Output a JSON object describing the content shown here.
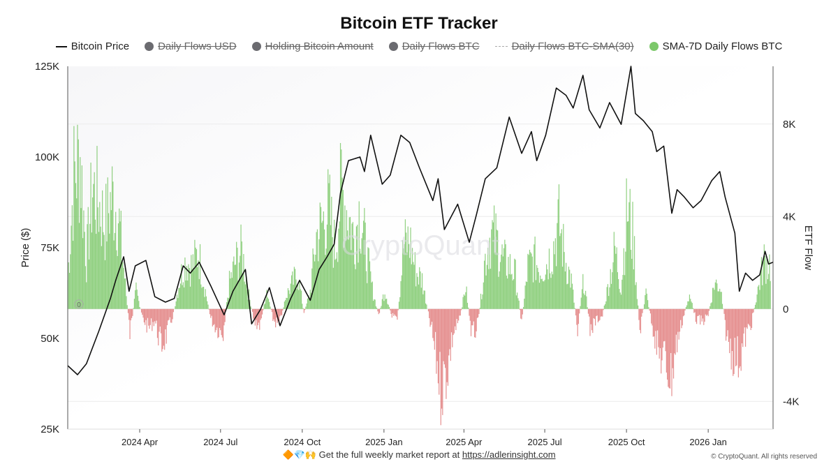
{
  "title": "Bitcoin ETF Tracker",
  "legend": [
    {
      "label": "Bitcoin Price",
      "kind": "line",
      "color": "#111111",
      "active": true
    },
    {
      "label": "Daily Flows USD",
      "kind": "dot",
      "color": "#6b6b70",
      "active": false
    },
    {
      "label": "Holding Bitcoin Amount",
      "kind": "dot",
      "color": "#6b6b70",
      "active": false
    },
    {
      "label": "Daily Flows BTC",
      "kind": "dot",
      "color": "#6b6b70",
      "active": false
    },
    {
      "label": "Daily Flows BTC-SMA(30)",
      "kind": "dash",
      "color": "#aaaaaa",
      "active": false
    },
    {
      "label": "SMA-7D Daily Flows BTC",
      "kind": "dot",
      "color": "#7cc86a",
      "active": true
    }
  ],
  "watermark": "CryptoQuant",
  "zero_marker": "0",
  "footer": {
    "emojis": "🔶💎🙌",
    "text": "Get the full weekly market report at",
    "link": "https://adlerinsight.com"
  },
  "copyright": "© CryptoQuant. All rights reserved",
  "chart_data": {
    "type": "line",
    "title": "Bitcoin ETF Tracker",
    "left_axis": {
      "label": "Price ($)",
      "ticks": [
        "125K",
        "100K",
        "75K",
        "50K",
        "25K"
      ],
      "tick_values": [
        125000,
        100000,
        75000,
        50000,
        25000
      ],
      "range": [
        25000,
        125000
      ]
    },
    "right_axis": {
      "label": "ETF Flow",
      "ticks": [
        "8K",
        "4K",
        "0",
        "-4K"
      ],
      "tick_values": [
        8000,
        4000,
        0,
        -4000
      ],
      "range": [
        -5200,
        10500
      ]
    },
    "x_axis": {
      "ticks": [
        "2024 Apr",
        "2024 Jul",
        "2024 Oct",
        "2025 Jan",
        "2025 Apr",
        "2025 Jul",
        "2025 Oct",
        "2026 Jan"
      ],
      "tick_dates": [
        "2024-04-01",
        "2024-07-01",
        "2024-10-01",
        "2025-01-01",
        "2025-04-01",
        "2025-07-01",
        "2025-10-01",
        "2026-01-01"
      ],
      "range": [
        "2024-01-11",
        "2026-03-15"
      ]
    },
    "grid": true,
    "legend_position": "top",
    "series": [
      {
        "name": "Bitcoin Price",
        "axis": "left",
        "color": "#111111",
        "points": [
          [
            "2024-01-11",
            42500
          ],
          [
            "2024-01-22",
            40000
          ],
          [
            "2024-02-01",
            43000
          ],
          [
            "2024-02-15",
            52000
          ],
          [
            "2024-02-28",
            61000
          ],
          [
            "2024-03-05",
            66000
          ],
          [
            "2024-03-14",
            72500
          ],
          [
            "2024-03-20",
            63000
          ],
          [
            "2024-03-27",
            70000
          ],
          [
            "2024-04-08",
            71500
          ],
          [
            "2024-04-18",
            61500
          ],
          [
            "2024-04-30",
            60000
          ],
          [
            "2024-05-10",
            61000
          ],
          [
            "2024-05-20",
            70000
          ],
          [
            "2024-05-28",
            68000
          ],
          [
            "2024-06-07",
            71000
          ],
          [
            "2024-06-20",
            64500
          ],
          [
            "2024-07-05",
            56500
          ],
          [
            "2024-07-15",
            63000
          ],
          [
            "2024-07-29",
            69000
          ],
          [
            "2024-08-05",
            54000
          ],
          [
            "2024-08-15",
            58000
          ],
          [
            "2024-08-25",
            64000
          ],
          [
            "2024-09-06",
            53500
          ],
          [
            "2024-09-18",
            61000
          ],
          [
            "2024-09-28",
            66000
          ],
          [
            "2024-10-10",
            60500
          ],
          [
            "2024-10-20",
            69000
          ],
          [
            "2024-10-29",
            72500
          ],
          [
            "2024-11-06",
            76000
          ],
          [
            "2024-11-13",
            90000
          ],
          [
            "2024-11-22",
            99000
          ],
          [
            "2024-12-05",
            100000
          ],
          [
            "2024-12-10",
            96000
          ],
          [
            "2024-12-17",
            106000
          ],
          [
            "2024-12-30",
            92500
          ],
          [
            "2025-01-08",
            95000
          ],
          [
            "2025-01-20",
            106000
          ],
          [
            "2025-01-30",
            104000
          ],
          [
            "2025-02-10",
            97000
          ],
          [
            "2025-02-25",
            88000
          ],
          [
            "2025-03-03",
            94000
          ],
          [
            "2025-03-10",
            80000
          ],
          [
            "2025-03-25",
            87000
          ],
          [
            "2025-04-07",
            76500
          ],
          [
            "2025-04-15",
            84000
          ],
          [
            "2025-04-25",
            94000
          ],
          [
            "2025-05-08",
            97000
          ],
          [
            "2025-05-22",
            111000
          ],
          [
            "2025-06-05",
            101000
          ],
          [
            "2025-06-16",
            107000
          ],
          [
            "2025-06-22",
            99000
          ],
          [
            "2025-07-02",
            106000
          ],
          [
            "2025-07-14",
            119000
          ],
          [
            "2025-07-25",
            117000
          ],
          [
            "2025-08-02",
            113500
          ],
          [
            "2025-08-13",
            122500
          ],
          [
            "2025-08-20",
            113000
          ],
          [
            "2025-09-01",
            108000
          ],
          [
            "2025-09-12",
            115000
          ],
          [
            "2025-09-25",
            109000
          ],
          [
            "2025-10-06",
            125000
          ],
          [
            "2025-10-11",
            112000
          ],
          [
            "2025-10-20",
            110000
          ],
          [
            "2025-10-30",
            107000
          ],
          [
            "2025-11-04",
            101500
          ],
          [
            "2025-11-12",
            103000
          ],
          [
            "2025-11-21",
            84500
          ],
          [
            "2025-11-27",
            91000
          ],
          [
            "2025-12-05",
            89000
          ],
          [
            "2025-12-15",
            86000
          ],
          [
            "2025-12-24",
            88000
          ],
          [
            "2026-01-05",
            93500
          ],
          [
            "2026-01-14",
            96000
          ],
          [
            "2026-01-20",
            89000
          ],
          [
            "2026-01-31",
            79000
          ],
          [
            "2026-02-05",
            63000
          ],
          [
            "2026-02-12",
            68000
          ],
          [
            "2026-02-20",
            66000
          ],
          [
            "2026-02-28",
            67500
          ],
          [
            "2026-03-06",
            74000
          ],
          [
            "2026-03-10",
            70500
          ],
          [
            "2026-03-15",
            71000
          ]
        ]
      },
      {
        "name": "SMA-7D Daily Flows BTC",
        "axis": "right",
        "positive_color": "#7cc86a",
        "negative_color": "#e07b7b",
        "points": [
          [
            "2024-01-11",
            1800
          ],
          [
            "2024-01-18",
            8200
          ],
          [
            "2024-01-25",
            9400
          ],
          [
            "2024-02-01",
            3000
          ],
          [
            "2024-02-08",
            7500
          ],
          [
            "2024-02-15",
            6500
          ],
          [
            "2024-02-22",
            5200
          ],
          [
            "2024-03-01",
            7000
          ],
          [
            "2024-03-08",
            5800
          ],
          [
            "2024-03-15",
            2000
          ],
          [
            "2024-03-21",
            -1500
          ],
          [
            "2024-03-28",
            1200
          ],
          [
            "2024-04-04",
            -500
          ],
          [
            "2024-04-11",
            -1200
          ],
          [
            "2024-04-18",
            -700
          ],
          [
            "2024-04-25",
            -2300
          ],
          [
            "2024-05-02",
            -1500
          ],
          [
            "2024-05-09",
            -300
          ],
          [
            "2024-05-16",
            1800
          ],
          [
            "2024-05-23",
            3000
          ],
          [
            "2024-05-30",
            2600
          ],
          [
            "2024-06-06",
            3500
          ],
          [
            "2024-06-13",
            1400
          ],
          [
            "2024-06-20",
            -600
          ],
          [
            "2024-06-27",
            -1200
          ],
          [
            "2024-07-04",
            -1400
          ],
          [
            "2024-07-11",
            1600
          ],
          [
            "2024-07-18",
            2900
          ],
          [
            "2024-07-25",
            3600
          ],
          [
            "2024-08-01",
            1100
          ],
          [
            "2024-08-08",
            -800
          ],
          [
            "2024-08-15",
            -1000
          ],
          [
            "2024-08-22",
            1200
          ],
          [
            "2024-08-29",
            -600
          ],
          [
            "2024-09-05",
            -1100
          ],
          [
            "2024-09-12",
            700
          ],
          [
            "2024-09-19",
            1500
          ],
          [
            "2024-09-26",
            2200
          ],
          [
            "2024-10-03",
            -300
          ],
          [
            "2024-10-10",
            1100
          ],
          [
            "2024-10-17",
            4500
          ],
          [
            "2024-10-24",
            5300
          ],
          [
            "2024-10-31",
            6200
          ],
          [
            "2024-11-07",
            3600
          ],
          [
            "2024-11-14",
            7500
          ],
          [
            "2024-11-21",
            6000
          ],
          [
            "2024-11-28",
            4400
          ],
          [
            "2024-12-05",
            6200
          ],
          [
            "2024-12-12",
            3500
          ],
          [
            "2024-12-19",
            1200
          ],
          [
            "2024-12-26",
            -400
          ],
          [
            "2025-01-02",
            1200
          ],
          [
            "2025-01-09",
            -300
          ],
          [
            "2025-01-16",
            -800
          ],
          [
            "2025-01-23",
            3900
          ],
          [
            "2025-01-30",
            4200
          ],
          [
            "2025-02-06",
            2300
          ],
          [
            "2025-02-13",
            1800
          ],
          [
            "2025-02-20",
            -300
          ],
          [
            "2025-02-27",
            -2400
          ],
          [
            "2025-03-06",
            -4900
          ],
          [
            "2025-03-13",
            -3800
          ],
          [
            "2025-03-20",
            -1500
          ],
          [
            "2025-03-27",
            -700
          ],
          [
            "2025-04-03",
            1400
          ],
          [
            "2025-04-10",
            -1700
          ],
          [
            "2025-04-17",
            -1000
          ],
          [
            "2025-04-24",
            2800
          ],
          [
            "2025-05-01",
            4700
          ],
          [
            "2025-05-08",
            4200
          ],
          [
            "2025-05-15",
            3000
          ],
          [
            "2025-05-22",
            2700
          ],
          [
            "2025-05-29",
            2100
          ],
          [
            "2025-06-05",
            -900
          ],
          [
            "2025-06-12",
            2600
          ],
          [
            "2025-06-19",
            3100
          ],
          [
            "2025-06-26",
            2400
          ],
          [
            "2025-07-03",
            2800
          ],
          [
            "2025-07-10",
            3600
          ],
          [
            "2025-07-17",
            5300
          ],
          [
            "2025-07-24",
            3100
          ],
          [
            "2025-07-31",
            1700
          ],
          [
            "2025-08-07",
            -1200
          ],
          [
            "2025-08-14",
            1900
          ],
          [
            "2025-08-21",
            -1300
          ],
          [
            "2025-08-28",
            -700
          ],
          [
            "2025-09-04",
            -400
          ],
          [
            "2025-09-11",
            1600
          ],
          [
            "2025-09-18",
            3700
          ],
          [
            "2025-09-25",
            1300
          ],
          [
            "2025-10-02",
            6300
          ],
          [
            "2025-10-09",
            4200
          ],
          [
            "2025-10-16",
            -1400
          ],
          [
            "2025-10-23",
            1000
          ],
          [
            "2025-10-30",
            -900
          ],
          [
            "2025-11-06",
            -2800
          ],
          [
            "2025-11-13",
            -3100
          ],
          [
            "2025-11-20",
            -4300
          ],
          [
            "2025-11-27",
            -2000
          ],
          [
            "2025-12-04",
            -500
          ],
          [
            "2025-12-11",
            900
          ],
          [
            "2025-12-18",
            -600
          ],
          [
            "2025-12-25",
            -800
          ],
          [
            "2026-01-01",
            -400
          ],
          [
            "2026-01-08",
            1600
          ],
          [
            "2026-01-15",
            1400
          ],
          [
            "2026-01-22",
            -1800
          ],
          [
            "2026-01-29",
            -2800
          ],
          [
            "2026-02-05",
            -3100
          ],
          [
            "2026-02-12",
            -1700
          ],
          [
            "2026-02-19",
            -800
          ],
          [
            "2026-02-26",
            1200
          ],
          [
            "2026-03-05",
            3000
          ],
          [
            "2026-03-12",
            2800
          ]
        ]
      }
    ]
  }
}
